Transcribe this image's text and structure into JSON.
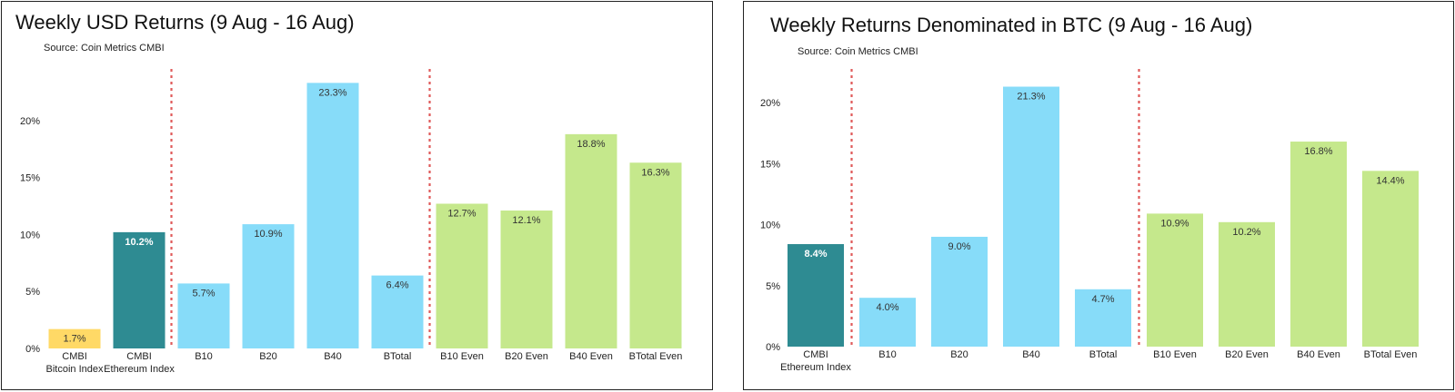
{
  "colors": {
    "bitcoin": "#FFD966",
    "ethereum": "#2E8B92",
    "sector": "#87DCF9",
    "even": "#C5E88C",
    "divider": "#E05A5A"
  },
  "chart_data": [
    {
      "type": "bar",
      "title": "Weekly USD Returns (9 Aug - 16 Aug)",
      "subtitle": "Source: Coin Metrics CMBI",
      "categories": [
        "CMBI Bitcoin Index",
        "CMBI Ethereum Index",
        "B10",
        "B20",
        "B40",
        "BTotal",
        "B10 Even",
        "B20 Even",
        "B40 Even",
        "BTotal Even"
      ],
      "category_lines": [
        [
          "CMBI",
          "Bitcoin Index"
        ],
        [
          "CMBI",
          "Ethereum Index"
        ],
        [
          "B10"
        ],
        [
          "B20"
        ],
        [
          "B40"
        ],
        [
          "BTotal"
        ],
        [
          "B10 Even"
        ],
        [
          "B20 Even"
        ],
        [
          "B40 Even"
        ],
        [
          "BTotal Even"
        ]
      ],
      "values": [
        1.7,
        10.2,
        5.7,
        10.9,
        23.3,
        6.4,
        12.7,
        12.1,
        18.8,
        16.3
      ],
      "value_labels": [
        "1.7%",
        "10.2%",
        "5.7%",
        "10.9%",
        "23.3%",
        "6.4%",
        "12.7%",
        "12.1%",
        "18.8%",
        "16.3%"
      ],
      "bar_groups": [
        "bitcoin",
        "ethereum",
        "sector",
        "sector",
        "sector",
        "sector",
        "even",
        "even",
        "even",
        "even"
      ],
      "dividers_after_index": [
        1,
        5
      ],
      "yticks": [
        0,
        5,
        10,
        15,
        20
      ],
      "ytick_labels": [
        "0%",
        "5%",
        "10%",
        "15%",
        "20%"
      ],
      "ylim": [
        0,
        24
      ],
      "grid": false,
      "xlabel": "",
      "ylabel": ""
    },
    {
      "type": "bar",
      "title": "Weekly Returns Denominated in BTC (9 Aug - 16 Aug)",
      "subtitle": "Source: Coin Metrics CMBI",
      "categories": [
        "CMBI Ethereum Index",
        "B10",
        "B20",
        "B40",
        "BTotal",
        "B10 Even",
        "B20 Even",
        "B40 Even",
        "BTotal Even"
      ],
      "category_lines": [
        [
          "CMBI",
          "Ethereum Index"
        ],
        [
          "B10"
        ],
        [
          "B20"
        ],
        [
          "B40"
        ],
        [
          "BTotal"
        ],
        [
          "B10 Even"
        ],
        [
          "B20 Even"
        ],
        [
          "B40 Even"
        ],
        [
          "BTotal Even"
        ]
      ],
      "values": [
        8.4,
        4.0,
        9.0,
        21.3,
        4.7,
        10.9,
        10.2,
        16.8,
        14.4
      ],
      "value_labels": [
        "8.4%",
        "4.0%",
        "9.0%",
        "21.3%",
        "4.7%",
        "10.9%",
        "10.2%",
        "16.8%",
        "14.4%"
      ],
      "bar_groups": [
        "ethereum",
        "sector",
        "sector",
        "sector",
        "sector",
        "even",
        "even",
        "even",
        "even"
      ],
      "dividers_after_index": [
        0,
        4
      ],
      "yticks": [
        0,
        5,
        10,
        15,
        20
      ],
      "ytick_labels": [
        "0%",
        "5%",
        "10%",
        "15%",
        "20%"
      ],
      "ylim": [
        0,
        22
      ],
      "grid": false,
      "xlabel": "",
      "ylabel": ""
    }
  ]
}
